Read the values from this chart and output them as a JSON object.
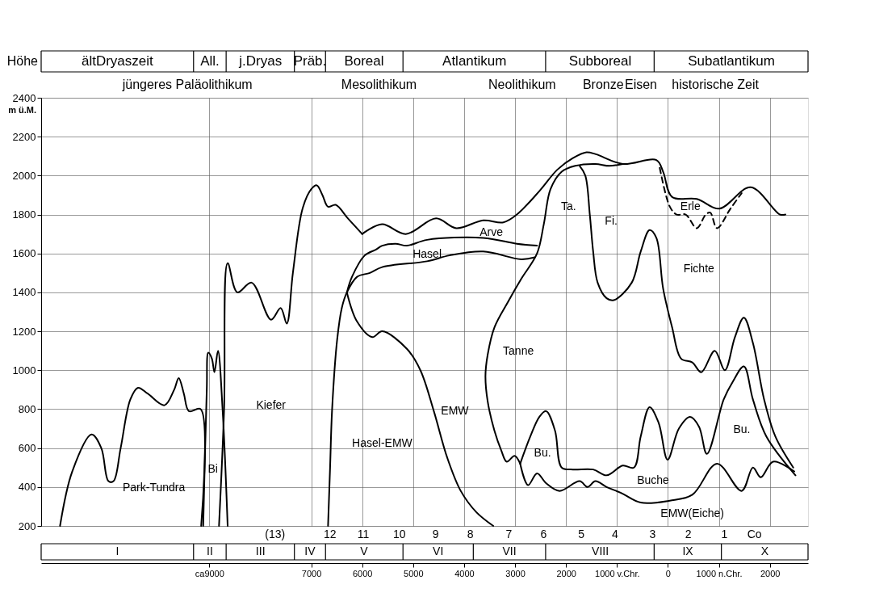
{
  "chart_data": {
    "type": "line",
    "ylabel": "Höhe",
    "xlim": [
      -12300,
      2750
    ],
    "ylim": [
      200,
      2400
    ],
    "xticks": [
      {
        "value": -9000,
        "label": "ca9000"
      },
      {
        "value": -7000,
        "label": "7000"
      },
      {
        "value": -6000,
        "label": "6000"
      },
      {
        "value": -5000,
        "label": "5000"
      },
      {
        "value": -4000,
        "label": "4000"
      },
      {
        "value": -3000,
        "label": "3000"
      },
      {
        "value": -2000,
        "label": "2000"
      },
      {
        "value": -1000,
        "label": "1000 v.Chr."
      },
      0,
      {
        "value": 1000,
        "label": "1000 n.Chr."
      },
      2000
    ],
    "yticks": [
      200,
      400,
      600,
      800,
      1000,
      1200,
      1400,
      1600,
      1800,
      2000,
      2200,
      2400
    ],
    "grid": true,
    "series": [
      {
        "name": "Park-Tundra",
        "color": "#000000",
        "x": [
          -11930,
          -11690,
          -11310,
          -11120,
          -10980,
          -10880,
          -10740,
          -10550,
          -10400,
          -10210,
          -9880,
          -9690,
          -9600,
          -9500,
          -9400,
          -9170,
          -9160
        ],
        "values": [
          200,
          480,
          670,
          600,
          430,
          430,
          600,
          850,
          910,
          880,
          820,
          900,
          960,
          880,
          790,
          800,
          200
        ]
      },
      {
        "name": "Bi",
        "color": "#000000",
        "x": [
          -9120,
          -9050,
          -9020,
          -8950,
          -8900,
          -8830,
          -8740,
          -8640
        ],
        "values": [
          200,
          900,
          1090,
          1060,
          990,
          1100,
          800,
          200
        ]
      },
      {
        "name": "Kiefer",
        "color": "#000000",
        "x": [
          -8810,
          -8710,
          -8640,
          -8450,
          -8170,
          -7790,
          -7600,
          -7480,
          -7360,
          -7170,
          -7000,
          -6890,
          -6780,
          -6670,
          -6520,
          -6280,
          -6000
        ],
        "values": [
          200,
          800,
          1550,
          1400,
          1450,
          1260,
          1320,
          1240,
          1500,
          1830,
          1930,
          1950,
          1900,
          1840,
          1850,
          1780,
          1700
        ]
      },
      {
        "name": "Arve",
        "color": "#000000",
        "x": [
          -6000,
          -5610,
          -5145,
          -4550,
          -4154,
          -3625,
          -3229,
          -2965,
          -2524,
          -2172,
          -1864,
          -1599,
          -1415,
          -887,
          -226,
          -94,
          83,
          567,
          1007,
          1624,
          2196,
          2306
        ],
        "values": [
          1700,
          1750,
          1700,
          1780,
          1730,
          1770,
          1760,
          1800,
          1920,
          2030,
          2090,
          2120,
          2110,
          2060,
          2080,
          2020,
          1890,
          1880,
          1830,
          1940,
          1800,
          1800
        ]
      },
      {
        "name": "Hasel",
        "color": "#000000",
        "x": [
          -6300,
          -6200,
          -5950,
          -5730,
          -5607,
          -5343,
          -5123,
          -4726,
          -3625,
          -2965,
          -2568
        ],
        "values": [
          1400,
          1480,
          1590,
          1620,
          1640,
          1650,
          1640,
          1670,
          1680,
          1650,
          1640
        ]
      },
      {
        "name": "Hasel-EMW",
        "color": "#000000",
        "x": [
          -6670,
          -6630,
          -6590,
          -6490,
          -6400,
          -6300,
          -6100,
          -5850,
          -5607,
          -4726,
          -4286,
          -3625,
          -2877,
          -2612
        ],
        "values": [
          200,
          500,
          800,
          1160,
          1320,
          1400,
          1480,
          1500,
          1530,
          1560,
          1590,
          1610,
          1570,
          1580
        ]
      },
      {
        "name": "EMW",
        "color": "#000000",
        "x": [
          -6300,
          -6100,
          -5800,
          -5607,
          -5123,
          -4858,
          -4594,
          -4330,
          -4066,
          -3757,
          -3427
        ],
        "values": [
          1400,
          1250,
          1170,
          1200,
          1110,
          1000,
          790,
          550,
          380,
          270,
          200
        ]
      },
      {
        "name": "Tanne",
        "color": "#000000",
        "x": [
          -2899,
          -3009,
          -3163,
          -3273,
          -3405,
          -3537,
          -3581,
          -3537,
          -3405,
          -3141,
          -2877,
          -2568,
          -2436,
          -2304,
          -2084,
          -1820,
          -1423,
          -1151,
          -887
        ],
        "values": [
          520,
          560,
          530,
          590,
          690,
          840,
          970,
          1080,
          1220,
          1350,
          1470,
          1600,
          1750,
          1930,
          2020,
          2050,
          2060,
          2050,
          2060
        ]
      },
      {
        "name": "Fichte",
        "color": "#000000",
        "x": [
          -1732,
          -1621,
          -1533,
          -1467,
          -1379,
          -1203,
          -1063,
          -710,
          -534,
          -359,
          -227,
          -94,
          83,
          258,
          479,
          655,
          919,
          1117,
          1315,
          1491,
          1668,
          1888,
          2108,
          2460
        ],
        "values": [
          2050,
          2000,
          1800,
          1610,
          1450,
          1370,
          1360,
          1450,
          1610,
          1720,
          1680,
          1420,
          1220,
          1060,
          1040,
          990,
          1100,
          1000,
          1170,
          1270,
          1140,
          850,
          660,
          500
        ]
      },
      {
        "name": "Buche",
        "color": "#000000",
        "x": [
          -2899,
          -2700,
          -2524,
          -2392,
          -2216,
          -2084,
          -1864,
          -1467,
          -1203,
          -887,
          -666,
          -534,
          -359,
          -182,
          -6,
          215,
          435,
          611,
          765,
          1095,
          1271,
          1491,
          1668,
          1932,
          2504
        ],
        "values": [
          520,
          660,
          760,
          790,
          690,
          500,
          490,
          490,
          460,
          510,
          500,
          660,
          810,
          730,
          540,
          700,
          760,
          710,
          570,
          850,
          940,
          1020,
          850,
          660,
          460
        ]
      },
      {
        "name": "EMW(Eiche)",
        "color": "#000000",
        "x": [
          -2899,
          -2744,
          -2568,
          -2392,
          -2128,
          -1732,
          -1577,
          -1423,
          -1203,
          -921,
          -534,
          38,
          479,
          963,
          1447,
          1668,
          1822,
          2064,
          2480
        ],
        "values": [
          520,
          410,
          470,
          420,
          380,
          430,
          400,
          430,
          400,
          370,
          320,
          330,
          360,
          520,
          380,
          500,
          450,
          530,
          480
        ]
      },
      {
        "name": "Erle",
        "color": "#000000",
        "line_style": "dashed",
        "x": [
          -160,
          38,
          170,
          347,
          567,
          743,
          831,
          963,
          1227,
          1447
        ],
        "values": [
          2040,
          1840,
          1800,
          1800,
          1730,
          1800,
          1810,
          1730,
          1830,
          1910
        ]
      }
    ],
    "annotations": [
      "m ü.M.",
      "ältDryaszeit",
      "All.",
      "j.Dryas",
      "Präb.",
      "Boreal",
      "Atlantikum",
      "Subboreal",
      "Subatlantikum",
      "jüngeres Paläolithikum",
      "Mesolithikum",
      "Neolithikum",
      "Bronze",
      "Eisen",
      "historische Zeit",
      "(13)",
      "12",
      "11",
      "10",
      "9",
      "8",
      "7",
      "6",
      "5",
      "4",
      "3",
      "2",
      "1",
      "Co",
      "I",
      "II",
      "III",
      "IV",
      "V",
      "VI",
      "VII",
      "VIII",
      "IX",
      "X",
      "Ta.",
      "Fi.",
      "Bu.",
      "Bu."
    ]
  }
}
